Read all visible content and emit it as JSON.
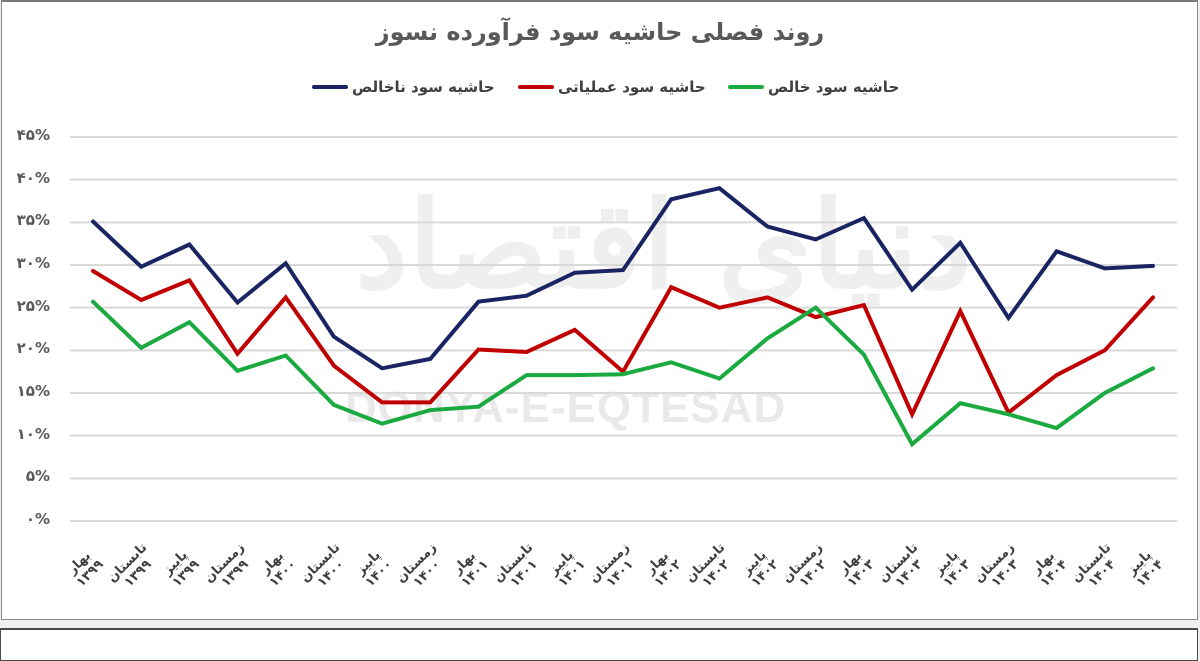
{
  "chart_data": {
    "type": "line",
    "title": "روند فصلی حاشیه سود فرآورده نسوز",
    "xlabel": "",
    "ylabel": "",
    "ylim": [
      0,
      45
    ],
    "y_ticks": [
      "۰%",
      "۵%",
      "۱۰%",
      "۱۵%",
      "۲۰%",
      "۲۵%",
      "۳۰%",
      "۳۵%",
      "۴۰%",
      "۴۵%"
    ],
    "grid": true,
    "legend_position": "top",
    "categories": [
      {
        "season": "بهار",
        "year": "۱۳۹۹"
      },
      {
        "season": "تابستان",
        "year": "۱۳۹۹"
      },
      {
        "season": "پاییز",
        "year": "۱۳۹۹"
      },
      {
        "season": "زمستان",
        "year": "۱۳۹۹"
      },
      {
        "season": "بهار",
        "year": "۱۴۰۰"
      },
      {
        "season": "تابستان",
        "year": "۱۴۰۰"
      },
      {
        "season": "پاییز",
        "year": "۱۴۰۰"
      },
      {
        "season": "زمستان",
        "year": "۱۴۰۰"
      },
      {
        "season": "بهار",
        "year": "۱۴۰۱"
      },
      {
        "season": "تابستان",
        "year": "۱۴۰۱"
      },
      {
        "season": "پاییز",
        "year": "۱۴۰۱"
      },
      {
        "season": "زمستان",
        "year": "۱۴۰۱"
      },
      {
        "season": "بهار",
        "year": "۱۴۰۲"
      },
      {
        "season": "تابستان",
        "year": "۱۴۰۲"
      },
      {
        "season": "پاییز",
        "year": "۱۴۰۲"
      },
      {
        "season": "زمستان",
        "year": "۱۴۰۲"
      },
      {
        "season": "بهار",
        "year": "۱۴۰۳"
      },
      {
        "season": "تابستان",
        "year": "۱۴۰۳"
      },
      {
        "season": "پاییز",
        "year": "۱۴۰۳"
      },
      {
        "season": "زمستان",
        "year": "۱۴۰۳"
      },
      {
        "season": "بهار",
        "year": "۱۴۰۴"
      },
      {
        "season": "تابستان",
        "year": "۱۴۰۴"
      },
      {
        "season": "پاییز",
        "year": "۱۴۰۴"
      }
    ],
    "series": [
      {
        "name": "حاشیه سود ناخالص",
        "color": "#1a2462",
        "values": [
          35.1,
          29.8,
          32.4,
          25.6,
          30.2,
          21.6,
          17.9,
          19.0,
          25.7,
          26.4,
          29.1,
          29.4,
          37.7,
          39.0,
          34.5,
          33.0,
          35.5,
          27.1,
          32.6,
          23.8,
          31.6,
          29.6,
          29.9
        ]
      },
      {
        "name": "حاشیه سود عملیاتی",
        "color": "#c00000",
        "values": [
          29.3,
          25.9,
          28.2,
          19.6,
          26.2,
          18.2,
          13.9,
          13.9,
          20.1,
          19.8,
          22.4,
          17.5,
          27.4,
          25.0,
          26.2,
          23.9,
          25.3,
          12.5,
          24.6,
          12.7,
          17.1,
          20.0,
          26.2
        ]
      },
      {
        "name": "حاشیه سود خالص",
        "color": "#1aaa40",
        "values": [
          25.7,
          20.3,
          23.3,
          17.6,
          19.4,
          13.6,
          11.4,
          13.0,
          13.4,
          17.1,
          17.1,
          17.2,
          18.6,
          16.7,
          21.4,
          25.0,
          19.5,
          9.0,
          13.8,
          12.5,
          10.9,
          15.0,
          17.9
        ]
      }
    ]
  },
  "title": "روند فصلی حاشیه سود فرآورده نسوز",
  "legend": [
    {
      "label": "حاشیه سود ناخالص",
      "color": "#1a2462"
    },
    {
      "label": "حاشیه سود عملیاتی",
      "color": "#c00000"
    },
    {
      "label": "حاشیه سود خالص",
      "color": "#1aaa40"
    }
  ],
  "watermark": {
    "fa": "دنیای اقتصاد",
    "en": "DONYA-E-EQTESAD"
  }
}
